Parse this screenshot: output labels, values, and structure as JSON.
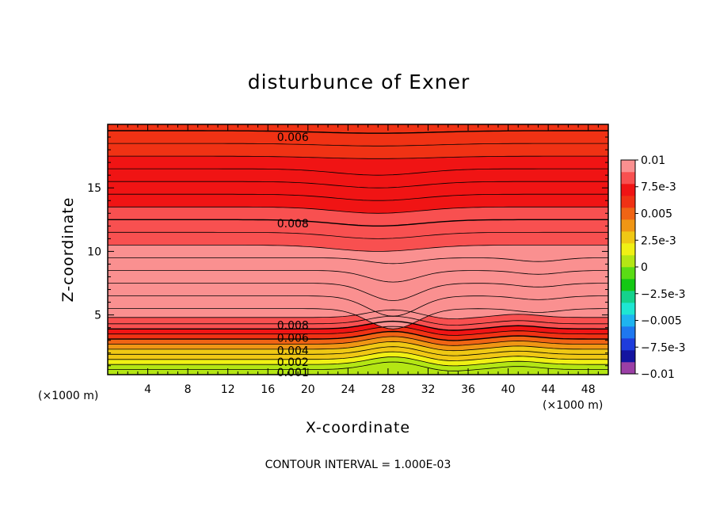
{
  "chart_data": {
    "type": "contour",
    "title": "disturbunce of Exner",
    "xlabel": "X-coordinate",
    "ylabel": "Z-coordinate",
    "x_unit": "(×1000 m)",
    "y_unit": "(×1000 m)",
    "xlim": [
      0,
      50
    ],
    "ylim": [
      0.3,
      20
    ],
    "xticks": [
      4,
      8,
      12,
      16,
      20,
      24,
      28,
      32,
      36,
      40,
      44,
      48
    ],
    "yticks": [
      5,
      10,
      15
    ],
    "contour_interval_text": "CONTOUR INTERVAL = 1.000E-03",
    "contour_labels": [
      {
        "text": "0.006",
        "x": 18.5,
        "z": 19.0
      },
      {
        "text": "0.008",
        "x": 18.5,
        "z": 12.2
      },
      {
        "text": "0.008",
        "x": 18.5,
        "z": 4.2
      },
      {
        "text": "0.006",
        "x": 18.5,
        "z": 3.2
      },
      {
        "text": "0.004",
        "x": 18.5,
        "z": 2.2
      },
      {
        "text": "0.002",
        "x": 18.5,
        "z": 1.3
      },
      {
        "text": "0.001",
        "x": 18.5,
        "z": 0.5
      }
    ],
    "colorbar": {
      "vmin": -0.01,
      "vmax": 0.01,
      "labels": [
        {
          "text": "0.01",
          "value": 0.01
        },
        {
          "text": "7.5e-3",
          "value": 0.0075
        },
        {
          "text": "0.005",
          "value": 0.005
        },
        {
          "text": "2.5e-3",
          "value": 0.0025
        },
        {
          "text": "0",
          "value": 0
        },
        {
          "text": "-2.5e-3",
          "value": -0.0025
        },
        {
          "text": "-0.005",
          "value": -0.005
        },
        {
          "text": "-7.5e-3",
          "value": -0.0075
        },
        {
          "text": "-0.01",
          "value": -0.01
        }
      ],
      "colors": [
        "#9b3fa6",
        "#1414a0",
        "#1e3cdc",
        "#1e78f0",
        "#1eb4f0",
        "#1ee6d2",
        "#14d28c",
        "#14c814",
        "#5adc14",
        "#b4e614",
        "#f0f014",
        "#f0c814",
        "#f09614",
        "#f06414",
        "#f03214",
        "#f01414",
        "#f85050",
        "#fa9090"
      ]
    },
    "bands": [
      {
        "z": 0.3,
        "value": 0.0004
      },
      {
        "z": 0.7,
        "value": 0.001
      },
      {
        "z": 1.1,
        "value": 0.0016
      },
      {
        "z": 1.5,
        "value": 0.0024
      },
      {
        "z": 1.9,
        "value": 0.0032
      },
      {
        "z": 2.3,
        "value": 0.0042
      },
      {
        "z": 2.7,
        "value": 0.0052
      },
      {
        "z": 3.1,
        "value": 0.0062
      },
      {
        "z": 3.5,
        "value": 0.0072
      },
      {
        "z": 3.9,
        "value": 0.008
      },
      {
        "z": 4.3,
        "value": 0.0086
      },
      {
        "z": 4.8,
        "value": 0.009
      },
      {
        "z": 5.5,
        "value": 0.0094
      },
      {
        "z": 6.5,
        "value": 0.0097
      },
      {
        "z": 7.5,
        "value": 0.0096
      },
      {
        "z": 8.5,
        "value": 0.0093
      },
      {
        "z": 9.5,
        "value": 0.009
      },
      {
        "z": 10.5,
        "value": 0.0087
      },
      {
        "z": 11.5,
        "value": 0.0084
      },
      {
        "z": 12.5,
        "value": 0.008
      },
      {
        "z": 13.5,
        "value": 0.0077
      },
      {
        "z": 14.5,
        "value": 0.0074
      },
      {
        "z": 15.5,
        "value": 0.0071
      },
      {
        "z": 16.5,
        "value": 0.0068
      },
      {
        "z": 17.5,
        "value": 0.0065
      },
      {
        "z": 18.5,
        "value": 0.0062
      },
      {
        "z": 19.5,
        "value": 0.0059
      },
      {
        "z": 20.0,
        "value": 0.0058
      }
    ]
  }
}
